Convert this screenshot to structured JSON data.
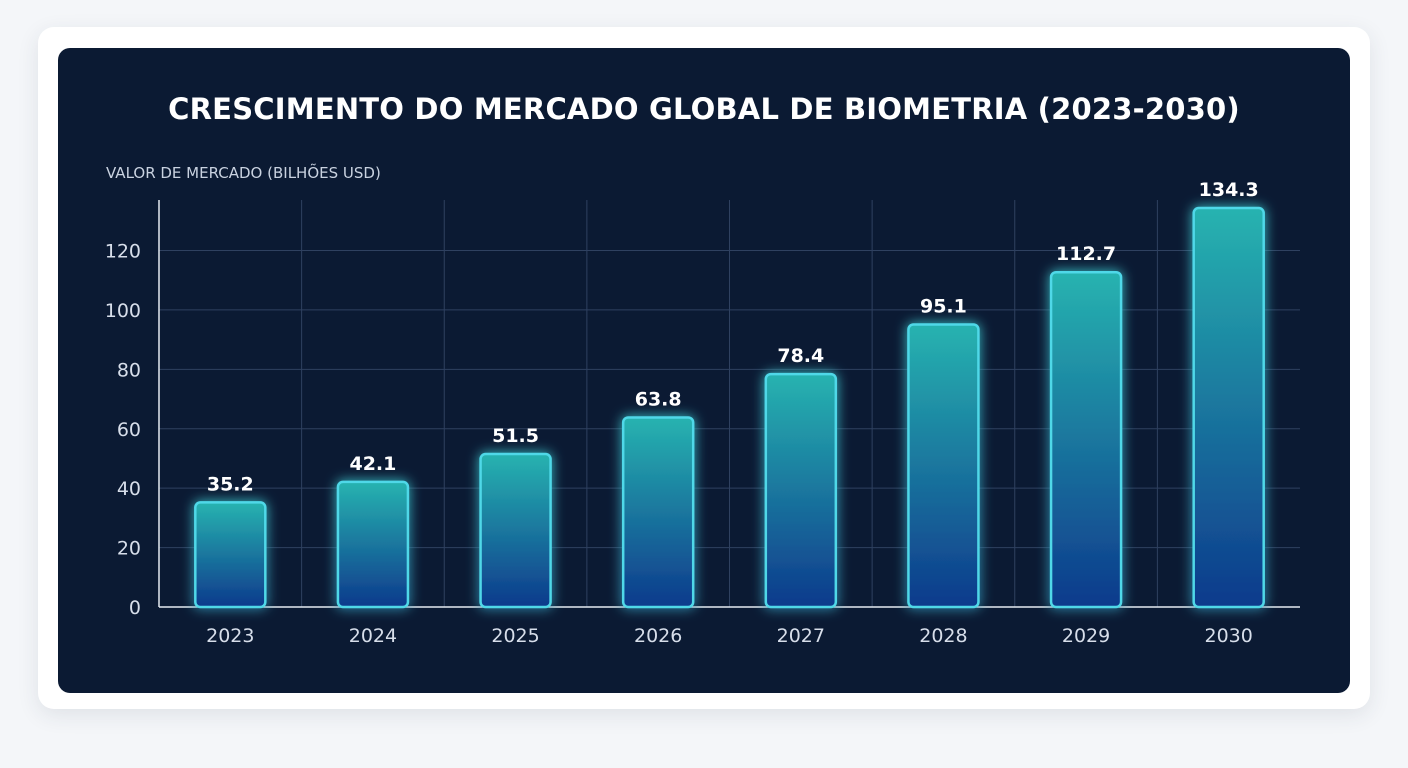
{
  "chart_data": {
    "type": "bar",
    "title": "CRESCIMENTO DO MERCADO GLOBAL DE BIOMETRIA (2023-2030)",
    "ylabel": "VALOR DE MERCADO (BILHÕES USD)",
    "xlabel": "",
    "categories": [
      "2023",
      "2024",
      "2025",
      "2026",
      "2027",
      "2028",
      "2029",
      "2030"
    ],
    "values": [
      35.2,
      42.1,
      51.5,
      63.8,
      78.4,
      95.1,
      112.7,
      134.3
    ],
    "value_labels": [
      "35.2",
      "42.1",
      "51.5",
      "63.8",
      "78.4",
      "95.1",
      "112.7",
      "134.3"
    ],
    "y_ticks": [
      0,
      20,
      40,
      60,
      80,
      100,
      120
    ],
    "ylim": [
      0,
      137
    ],
    "grid": true,
    "legend": "none",
    "colors": {
      "background": "#0b1a33",
      "bar_top": "#27b3b0",
      "bar_bottom": "#0d3a8c",
      "bar_outline": "#4fd8e8",
      "grid": "#2f4160"
    }
  }
}
